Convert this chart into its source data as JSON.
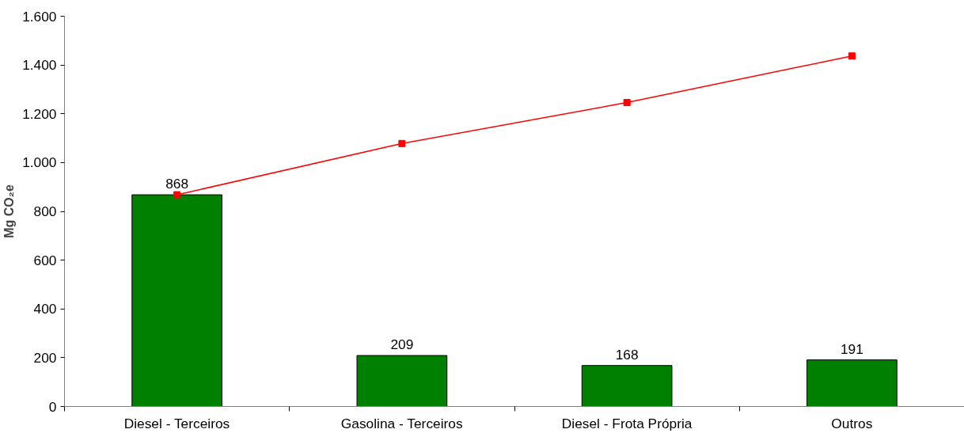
{
  "chart_data": {
    "type": "bar",
    "ylabel": "Mg CO₂e",
    "categories": [
      "Diesel - Terceiros",
      "Gasolina - Terceiros",
      "Diesel - Frota Própria",
      "Outros"
    ],
    "series": [
      {
        "color": "#008000",
        "values": [
          868,
          209,
          168,
          191
        ],
        "value_labels": [
          "868",
          "209",
          "168",
          "191"
        ]
      },
      {
        "type": "line",
        "color": "#ff0000",
        "values": [
          868,
          1078,
          1246,
          1437
        ],
        "marker": "square",
        "line_style": "solid"
      }
    ],
    "ylim": [
      0,
      1600
    ],
    "yticks": [
      0,
      200,
      400,
      600,
      800,
      {
        "value": 1000,
        "label": "1.000"
      },
      {
        "value": 1200,
        "label": "1.200"
      },
      {
        "value": 1400,
        "label": "1.400"
      },
      {
        "value": 1600,
        "label": "1.600"
      }
    ],
    "grid": false
  }
}
